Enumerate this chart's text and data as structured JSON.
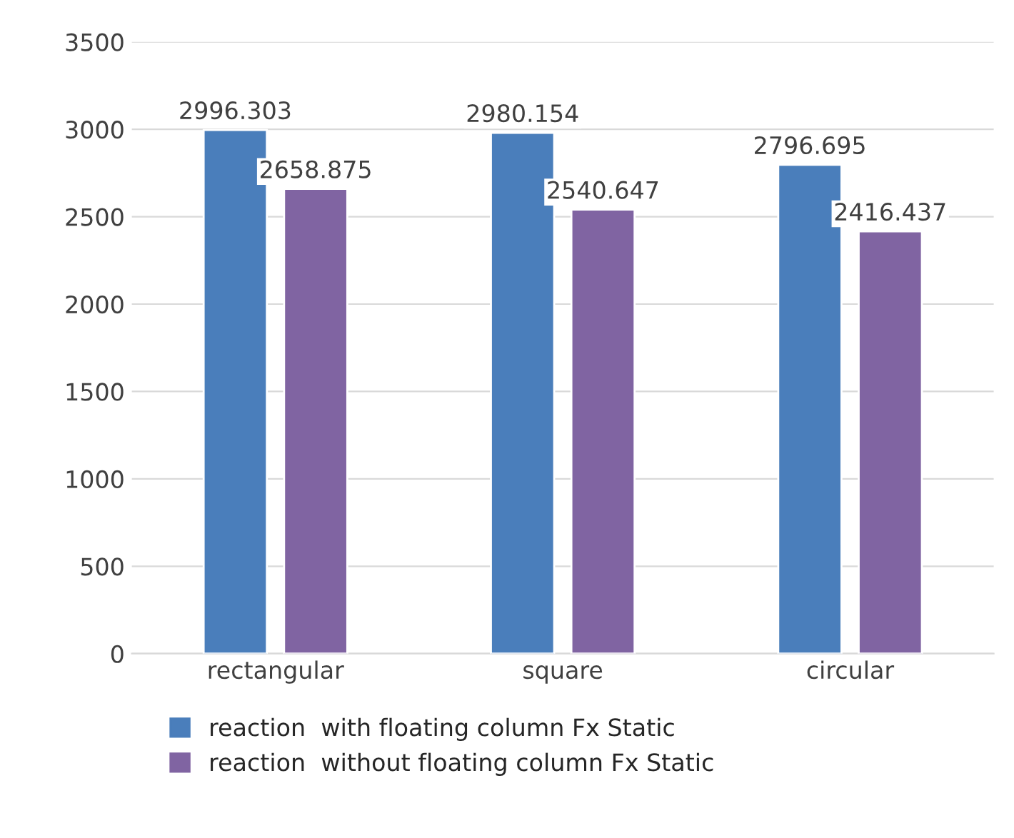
{
  "chart_data": {
    "type": "bar",
    "categories": [
      "rectangular",
      "square",
      "circular"
    ],
    "series": [
      {
        "name": "reaction  with floating column Fx Static",
        "color": "#4a7ebb",
        "values": [
          2996.303,
          2980.154,
          2796.695
        ]
      },
      {
        "name": "reaction  without floating column Fx Static",
        "color": "#8064a2",
        "values": [
          2658.875,
          2540.647,
          2416.437
        ]
      }
    ],
    "ylim": [
      0,
      3500
    ],
    "yticks": [
      0,
      500,
      1000,
      1500,
      2000,
      2500,
      3000,
      3500
    ],
    "grid": "y",
    "legend": "bottom",
    "data_labels": true
  }
}
